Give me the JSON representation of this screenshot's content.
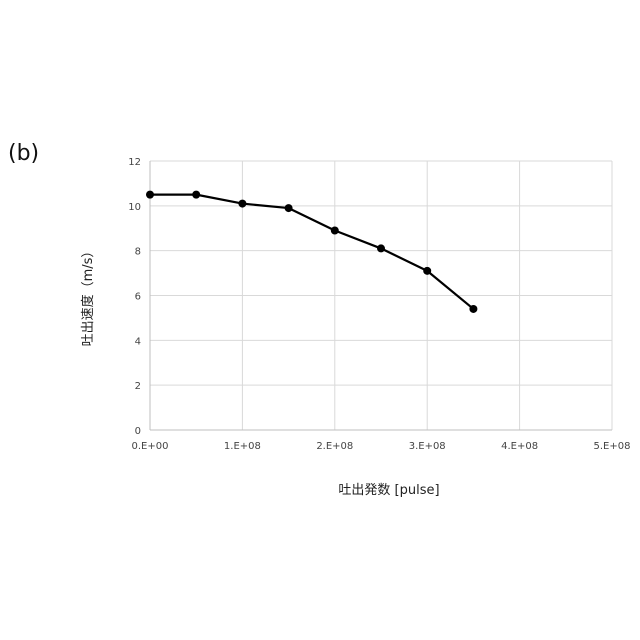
{
  "panel_label": "(b)",
  "chart_data": {
    "type": "line",
    "xlabel": "吐出発数 [pulse]",
    "ylabel": "吐出速度（m/s）",
    "xlim": [
      0,
      500000000
    ],
    "ylim": [
      0,
      12
    ],
    "x_ticks": [
      0,
      100000000,
      200000000,
      300000000,
      400000000,
      500000000
    ],
    "x_tick_labels": [
      "0.E+00",
      "1.E+08",
      "2.E+08",
      "3.E+08",
      "4.E+08",
      "5.E+08"
    ],
    "y_ticks": [
      0,
      2,
      4,
      6,
      8,
      10,
      12
    ],
    "y_tick_labels": [
      "0",
      "2",
      "4",
      "6",
      "8",
      "10",
      "12"
    ],
    "grid": true,
    "legend": "none",
    "series": [
      {
        "color": "#000000",
        "x": [
          0,
          50000000,
          100000000,
          150000000,
          200000000,
          250000000,
          300000000,
          350000000
        ],
        "values": [
          10.5,
          10.5,
          10.1,
          9.9,
          8.9,
          8.1,
          7.1,
          5.4
        ]
      }
    ]
  }
}
